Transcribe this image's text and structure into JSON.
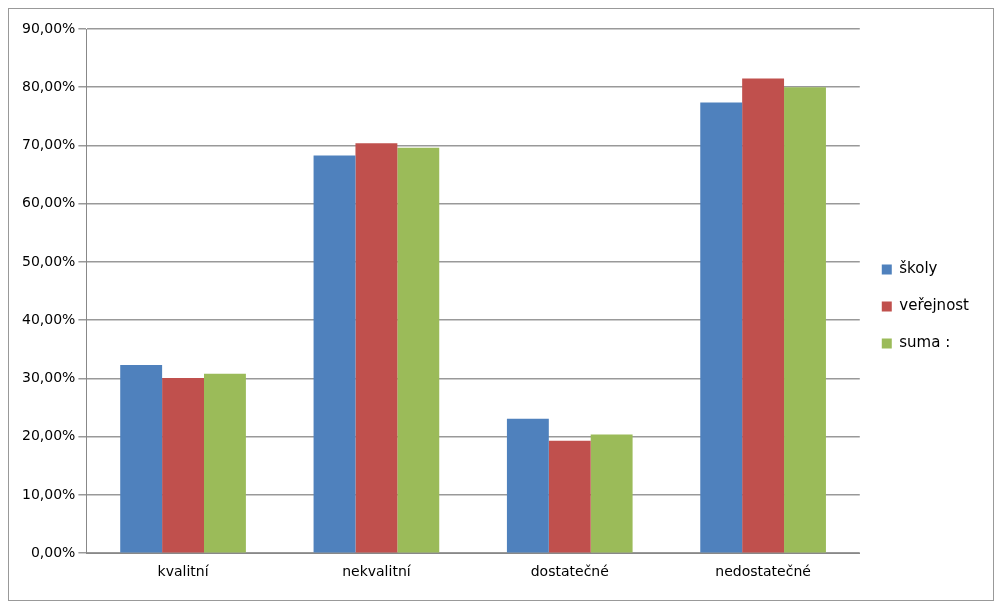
{
  "chart_data": {
    "type": "bar",
    "categories": [
      "kvalitní",
      "nekvalitní",
      "dostatečné",
      "nedostatečné"
    ],
    "series": [
      {
        "name": "školy",
        "color": "#4f81bd",
        "values": [
          32.3,
          68.3,
          23.1,
          77.4
        ]
      },
      {
        "name": "veřejnost",
        "color": "#c0504d",
        "values": [
          30.1,
          70.4,
          19.3,
          81.5
        ]
      },
      {
        "name": "suma :",
        "color": "#9bbb59",
        "values": [
          30.8,
          69.6,
          20.4,
          80.0
        ]
      }
    ],
    "ylim": [
      0,
      90
    ],
    "yticks": [
      {
        "value": 0,
        "label": "0,00%"
      },
      {
        "value": 10,
        "label": "10,00%"
      },
      {
        "value": 20,
        "label": "20,00%"
      },
      {
        "value": 30,
        "label": "30,00%"
      },
      {
        "value": 40,
        "label": "40,00%"
      },
      {
        "value": 50,
        "label": "50,00%"
      },
      {
        "value": 60,
        "label": "60,00%"
      },
      {
        "value": 70,
        "label": "70,00%"
      },
      {
        "value": 80,
        "label": "80,00%"
      },
      {
        "value": 90,
        "label": "90,00%"
      }
    ],
    "grid": "y",
    "legend": "right"
  }
}
